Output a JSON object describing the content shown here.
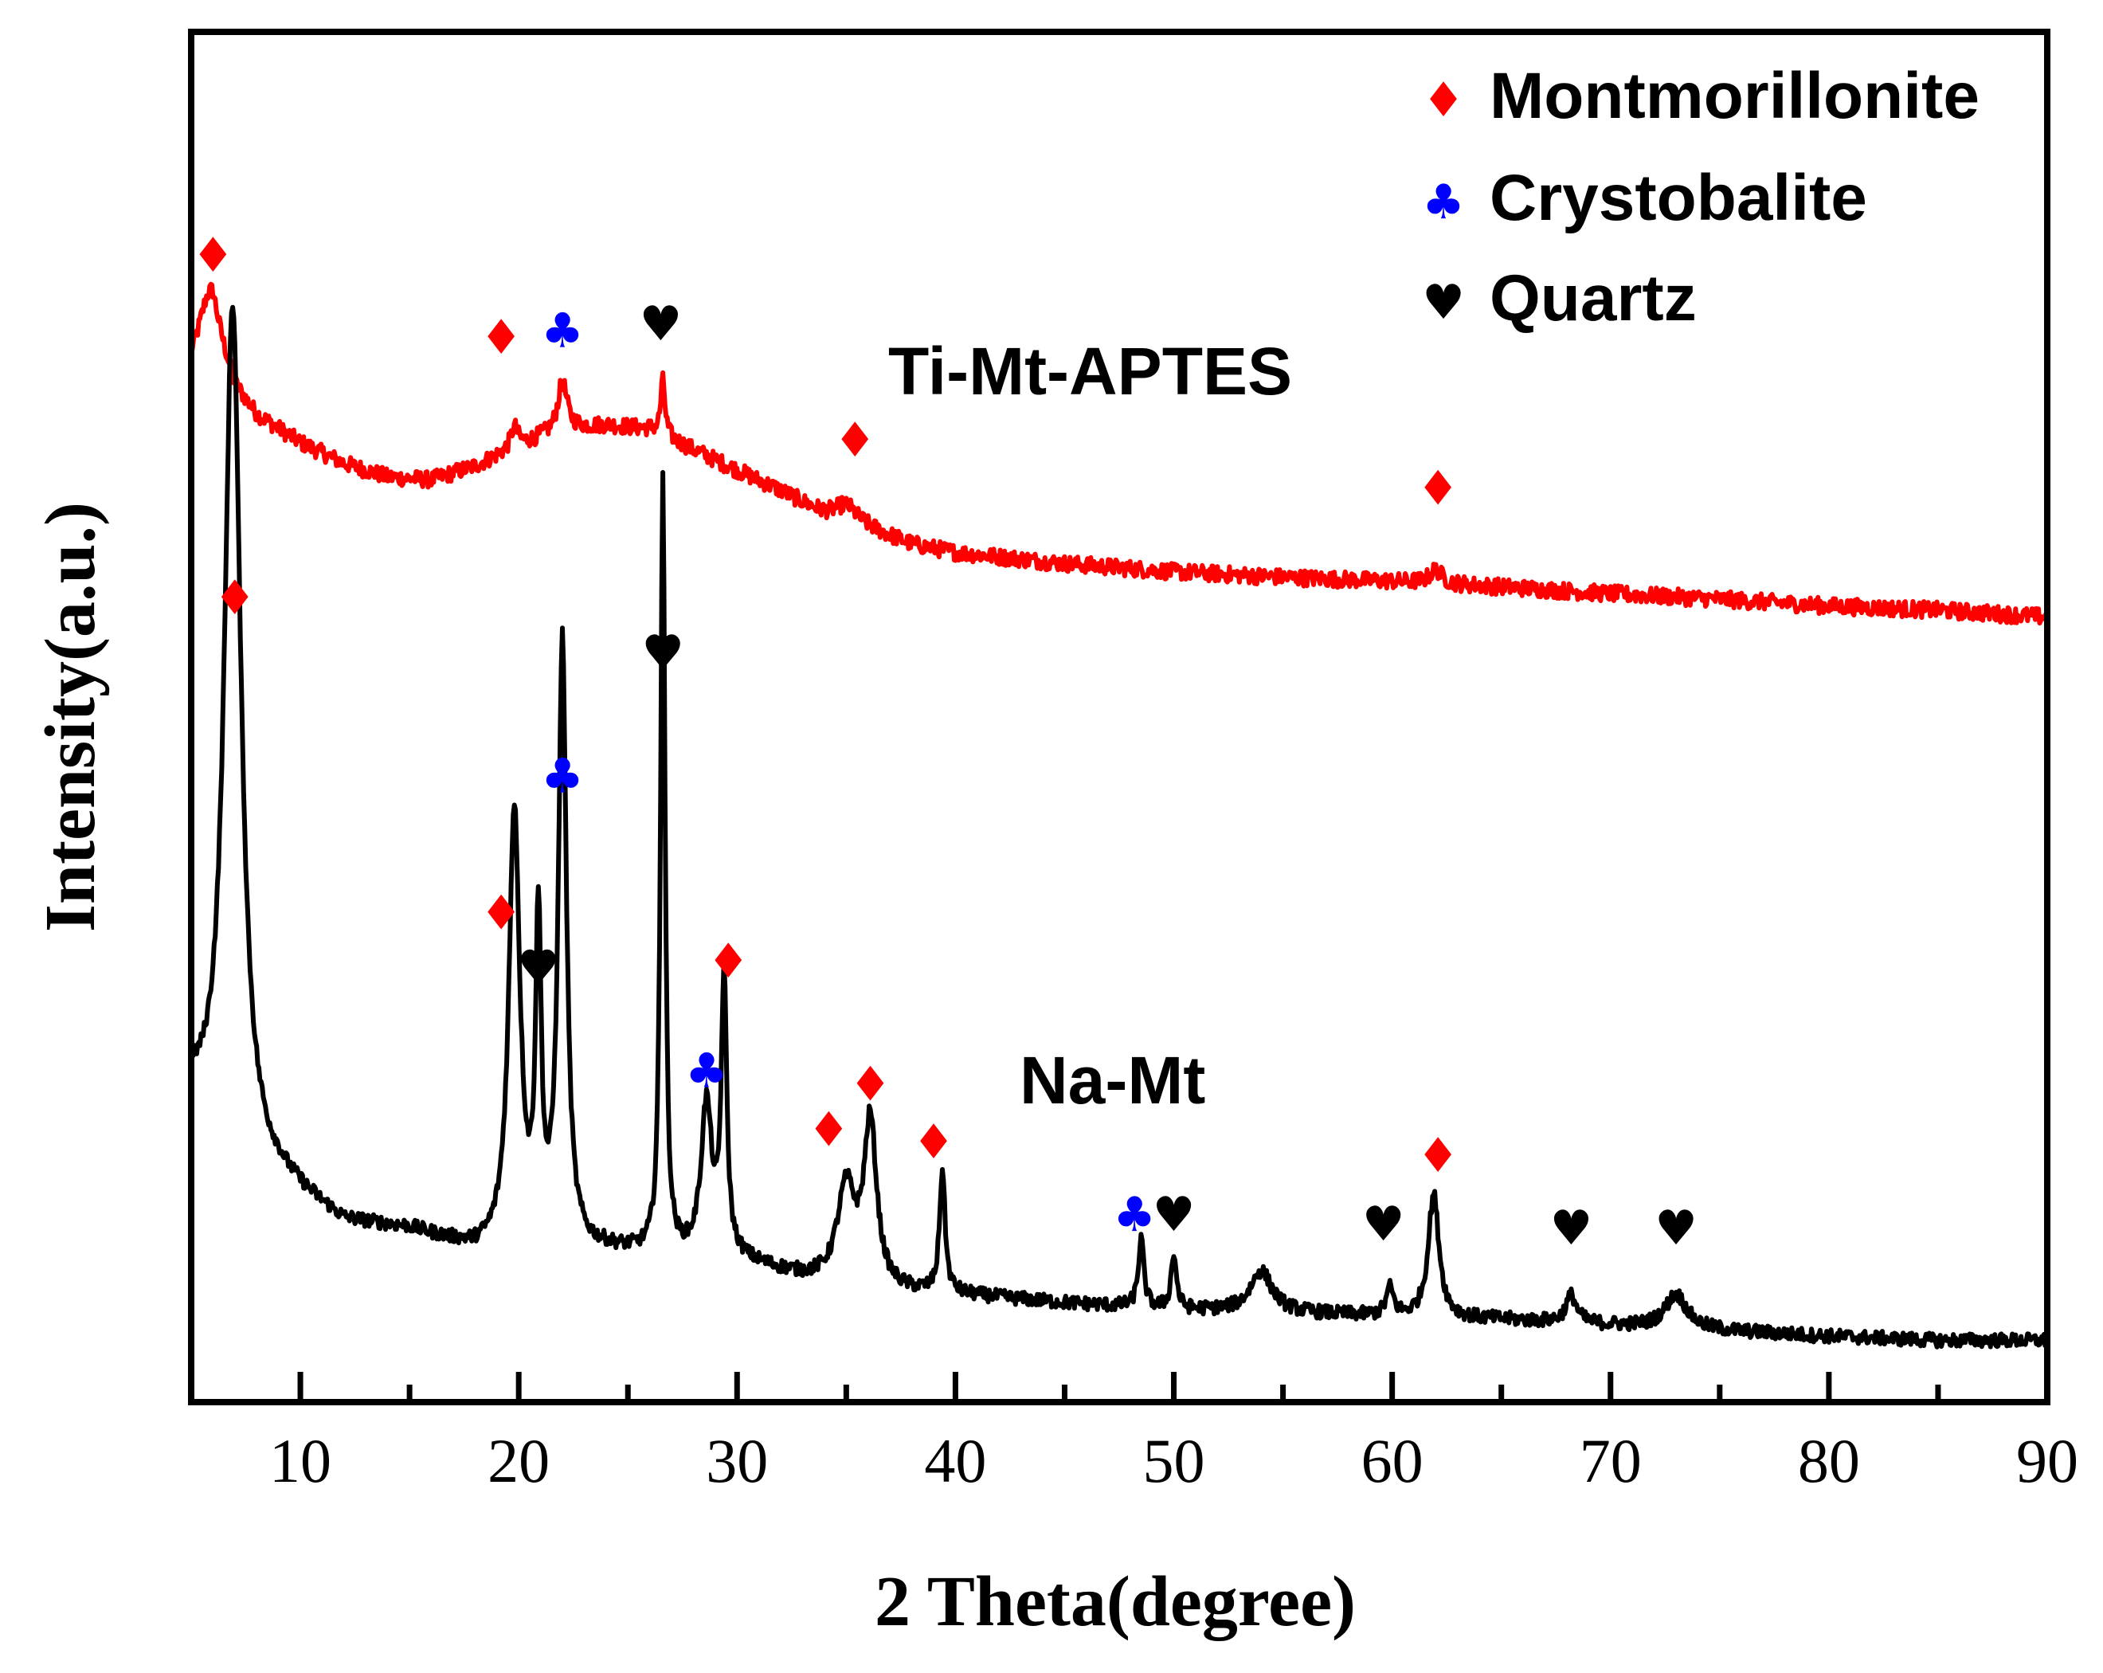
{
  "chart_data": {
    "type": "line",
    "title": "",
    "xlabel": "2 Theta(degree)",
    "ylabel": "Intensity(a.u.)",
    "xlim": [
      5,
      90
    ],
    "ylim": [
      0,
      100
    ],
    "xticks": [
      10,
      20,
      30,
      40,
      50,
      60,
      70,
      80,
      90
    ],
    "yticks_shown": false,
    "grid": false,
    "colors": {
      "montmorillonite": "#ff0000",
      "crystobalite": "#0000ff",
      "quartz": "#000000",
      "ti_series": "#ff0000",
      "na_series": "#000000"
    },
    "legend": {
      "position": "top-right",
      "entries": [
        {
          "name": "Montmorillonite",
          "symbol": "diamond",
          "color": "#ff0000"
        },
        {
          "name": "Crystobalite",
          "symbol": "club",
          "color": "#0000ff"
        },
        {
          "name": "Quartz",
          "symbol": "heart",
          "color": "#000000"
        }
      ]
    },
    "series": [
      {
        "name": "Ti-Mt-APTES",
        "color": "#ff0000",
        "baseline": [
          [
            5,
            76
          ],
          [
            6,
            78.5
          ],
          [
            7,
            74
          ],
          [
            8,
            72
          ],
          [
            10,
            70
          ],
          [
            12,
            68.5
          ],
          [
            14,
            67.5
          ],
          [
            16,
            67.3
          ],
          [
            18,
            68.3
          ],
          [
            20,
            69.8
          ],
          [
            22,
            71
          ],
          [
            24,
            71.3
          ],
          [
            26,
            71
          ],
          [
            28,
            69.5
          ],
          [
            30,
            68
          ],
          [
            32,
            66.5
          ],
          [
            34,
            64.8
          ],
          [
            36,
            63.8
          ],
          [
            38,
            62.6
          ],
          [
            40,
            62
          ],
          [
            45,
            61.2
          ],
          [
            50,
            60.6
          ],
          [
            55,
            60.2
          ],
          [
            60,
            59.9
          ],
          [
            65,
            59.5
          ],
          [
            70,
            59
          ],
          [
            75,
            58.6
          ],
          [
            80,
            58.1
          ],
          [
            85,
            57.8
          ],
          [
            90,
            57.3
          ]
        ],
        "peaks": [
          [
            5.8,
            3,
            0.5
          ],
          [
            19.8,
            1.5,
            0.2
          ],
          [
            22,
            3.5,
            0.25
          ],
          [
            26.6,
            4,
            0.12
          ],
          [
            35,
            1.2,
            0.6
          ],
          [
            62,
            1,
            0.35
          ]
        ],
        "noise": 0.6
      },
      {
        "name": "Na-Mt",
        "color": "#000000",
        "baseline": [
          [
            5,
            22
          ],
          [
            7,
            17
          ],
          [
            9,
            16
          ],
          [
            12,
            13
          ],
          [
            15,
            12.5
          ],
          [
            18,
            11
          ],
          [
            20,
            11
          ],
          [
            24,
            11
          ],
          [
            27,
            10.5
          ],
          [
            30,
            10.3
          ],
          [
            33,
            9
          ],
          [
            36,
            8
          ],
          [
            40,
            7.8
          ],
          [
            45,
            7.2
          ],
          [
            50,
            6.7
          ],
          [
            55,
            6.5
          ],
          [
            60,
            6.2
          ],
          [
            65,
            6
          ],
          [
            70,
            5.6
          ],
          [
            75,
            5.2
          ],
          [
            80,
            4.8
          ],
          [
            85,
            4.5
          ],
          [
            90,
            4.5
          ]
        ],
        "peaks": [
          [
            6.9,
            63,
            0.45
          ],
          [
            19.8,
            32,
            0.3
          ],
          [
            20.9,
            23,
            0.15
          ],
          [
            22,
            44,
            0.22
          ],
          [
            26.6,
            57,
            0.12
          ],
          [
            28.6,
            11,
            0.3
          ],
          [
            29.4,
            20,
            0.15
          ],
          [
            35,
            7,
            0.5
          ],
          [
            36.1,
            12,
            0.35
          ],
          [
            39.4,
            9,
            0.15
          ],
          [
            48.5,
            5,
            0.15
          ],
          [
            50,
            4,
            0.15
          ],
          [
            54,
            3,
            0.6
          ],
          [
            59.9,
            2,
            0.2
          ],
          [
            61.9,
            9,
            0.3
          ],
          [
            68.2,
            2,
            0.3
          ],
          [
            73,
            2.5,
            0.6
          ]
        ],
        "noise": 0.5
      }
    ],
    "series_labels": [
      {
        "series": "Ti-Mt-APTES",
        "text": "Ti-Mt-APTES"
      },
      {
        "series": "Na-Mt",
        "text": "Na-Mt"
      }
    ],
    "annotations": [
      {
        "series": "Ti-Mt-APTES",
        "type": "diamond",
        "x": 6.0,
        "y": 82.5
      },
      {
        "series": "Ti-Mt-APTES",
        "type": "diamond",
        "x": 19.2,
        "y": 76.5
      },
      {
        "series": "Ti-Mt-APTES",
        "type": "club",
        "x": 22.0,
        "y": 77
      },
      {
        "series": "Ti-Mt-APTES",
        "type": "heart",
        "x": 26.5,
        "y": 77.5
      },
      {
        "series": "Ti-Mt-APTES",
        "type": "diamond",
        "x": 35.4,
        "y": 69
      },
      {
        "series": "Ti-Mt-APTES",
        "type": "diamond",
        "x": 62.1,
        "y": 65.5
      },
      {
        "series": "Na-Mt",
        "type": "diamond",
        "x": 7.0,
        "y": 57.5
      },
      {
        "series": "Na-Mt",
        "type": "heart",
        "x": 26.6,
        "y": 53.5
      },
      {
        "series": "Na-Mt",
        "type": "club",
        "x": 22.0,
        "y": 44.5
      },
      {
        "series": "Na-Mt",
        "type": "diamond",
        "x": 19.2,
        "y": 34.5
      },
      {
        "series": "Na-Mt",
        "type": "heart",
        "x": 20.9,
        "y": 30.5
      },
      {
        "series": "Na-Mt",
        "type": "diamond",
        "x": 29.6,
        "y": 31
      },
      {
        "series": "Na-Mt",
        "type": "club",
        "x": 28.6,
        "y": 23
      },
      {
        "series": "Na-Mt",
        "type": "diamond",
        "x": 36.1,
        "y": 22
      },
      {
        "series": "Na-Mt",
        "type": "diamond",
        "x": 34.2,
        "y": 18.7
      },
      {
        "series": "Na-Mt",
        "type": "diamond",
        "x": 39.0,
        "y": 17.8
      },
      {
        "series": "Na-Mt",
        "type": "diamond",
        "x": 62.1,
        "y": 16.8
      },
      {
        "series": "Na-Mt",
        "type": "club",
        "x": 48.2,
        "y": 12.5
      },
      {
        "series": "Na-Mt",
        "type": "heart",
        "x": 50.0,
        "y": 12.5
      },
      {
        "series": "Na-Mt",
        "type": "heart",
        "x": 59.6,
        "y": 11.8
      },
      {
        "series": "Na-Mt",
        "type": "heart",
        "x": 68.2,
        "y": 11.5
      },
      {
        "series": "Na-Mt",
        "type": "heart",
        "x": 73.0,
        "y": 11.5
      }
    ]
  }
}
